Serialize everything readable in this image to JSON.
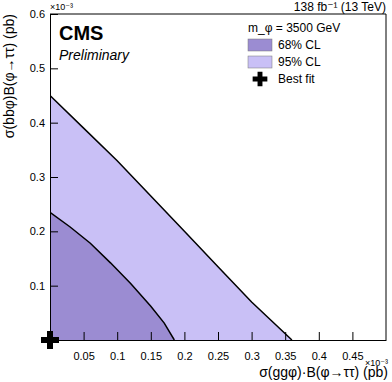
{
  "chart_data": {
    "type": "contour",
    "title": "CMS",
    "subtitle": "Preliminary",
    "lumi_label": "138 fb⁻¹ (13 TeV)",
    "legend_title": "m_φ = 3500 GeV",
    "x_label": "σ(ggφ)·B(φ→ττ) (pb)",
    "y_label": "σ(bbφ)B(φ→ττ) (pb)",
    "x_exponent": "×10⁻³",
    "y_exponent": "×10⁻³",
    "xlim": [
      0,
      0.5
    ],
    "ylim": [
      0,
      0.6
    ],
    "xticks": [
      0.05,
      0.1,
      0.15,
      0.2,
      0.25,
      0.3,
      0.35,
      0.4,
      0.45
    ],
    "yticks": [
      0.1,
      0.2,
      0.3,
      0.4,
      0.5,
      0.6
    ],
    "legend": "upper right",
    "series": [
      {
        "name": "68% CL",
        "type": "area",
        "color": "#9b8cd2",
        "x": [
          0,
          0.03,
          0.06,
          0.09,
          0.12,
          0.15,
          0.17,
          0.185
        ],
        "values": [
          0.235,
          0.208,
          0.178,
          0.142,
          0.104,
          0.062,
          0.031,
          0
        ]
      },
      {
        "name": "95% CL",
        "type": "area",
        "color": "#c9c0f6",
        "x": [
          0,
          0.05,
          0.1,
          0.15,
          0.2,
          0.25,
          0.3,
          0.33,
          0.36
        ],
        "values": [
          0.45,
          0.39,
          0.33,
          0.265,
          0.2,
          0.135,
          0.07,
          0.035,
          0
        ]
      },
      {
        "name": "Best fit",
        "type": "scatter",
        "marker": "cross",
        "color": "#000000",
        "x": [
          0
        ],
        "values": [
          0
        ]
      }
    ]
  }
}
